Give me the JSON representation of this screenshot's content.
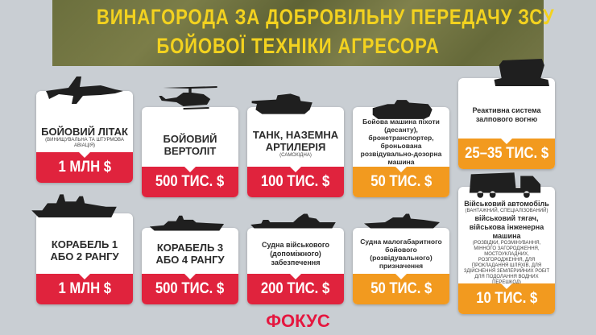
{
  "header": {
    "title_line1": "ВИНАГОРОДА ЗА ДОБРОВІЛЬНУ ПЕРЕДАЧУ ЗСУ",
    "title_line2": "БОЙОВОЇ ТЕХНІКИ АГРЕСОРА"
  },
  "cards": [
    {
      "title": "БОЙОВИЙ ЛІТАК",
      "note": "(винищувальна та штурмова авіація)",
      "price": "1 МЛН $"
    },
    {
      "title": "БОЙОВИЙ ВЕРТОЛІТ",
      "price": "500 ТИС. $"
    },
    {
      "title": "ТАНК, НАЗЕМНА АРТИЛЕРІЯ",
      "note": "(самохідна)",
      "price": "100 ТИС. $"
    },
    {
      "title": "Бойова машина піхоти (десанту), бронетранспортер, броньована розвідувально-дозорна машина",
      "price": "50 ТИС. $"
    },
    {
      "title": "Реактивна система залпового вогню",
      "price": "25–35 ТИС. $"
    },
    {
      "title": "КОРАБЕЛЬ 1 АБО 2 РАНГУ",
      "price": "1 МЛН $"
    },
    {
      "title": "Корабель 3 або 4 рангу",
      "price": "500 ТИС. $"
    },
    {
      "title": "Судна військового (допоміжного) забезпечення",
      "price": "200 ТИС. $"
    },
    {
      "title": "Судна малогабаритного бойового (розвідувального) призначення",
      "price": "50 ТИС. $"
    },
    {
      "title": "Військовий автомобіль",
      "note": "(вантажний, спеціалізований)",
      "title2": "військовий тягач, військова інженерна машина",
      "note2": "(розвідки, розмінування, мінного загородження, мостоукладних, розгородження, для прокладання шляхів, для здійснення землерийних робіт для подолання водних перешкод)",
      "price": "10 ТИС. $"
    }
  ],
  "footer": {
    "logo": "ФОКУС"
  }
}
